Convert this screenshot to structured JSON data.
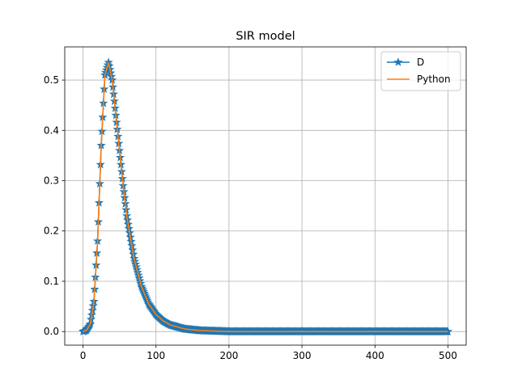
{
  "chart_data": {
    "type": "line",
    "title": "SIR model",
    "xlabel": "",
    "ylabel": "",
    "xlim": [
      -25,
      525
    ],
    "ylim": [
      -0.027,
      0.566
    ],
    "xticks": [
      0,
      100,
      200,
      300,
      400,
      500
    ],
    "yticks": [
      0.0,
      0.1,
      0.2,
      0.3,
      0.4,
      0.5
    ],
    "xtick_labels": [
      "0",
      "100",
      "200",
      "300",
      "400",
      "500"
    ],
    "ytick_labels": [
      "0.0",
      "0.1",
      "0.2",
      "0.3",
      "0.4",
      "0.5"
    ],
    "grid": true,
    "legend": "top-right",
    "x": [
      0,
      5,
      10,
      15,
      20,
      25,
      30,
      35,
      40,
      45,
      50,
      55,
      60,
      70,
      80,
      90,
      100,
      110,
      120,
      140,
      160,
      180,
      200,
      250,
      300,
      350,
      400,
      450,
      500
    ],
    "series": [
      {
        "name": "D",
        "color": "#1f77b4",
        "marker": "star",
        "values": [
          0.0,
          0.003,
          0.015,
          0.06,
          0.18,
          0.37,
          0.51,
          0.535,
          0.5,
          0.43,
          0.36,
          0.29,
          0.23,
          0.145,
          0.09,
          0.055,
          0.034,
          0.021,
          0.013,
          0.005,
          0.002,
          0.001,
          0.0,
          0.0,
          0.0,
          0.0,
          0.0,
          0.0,
          0.0
        ]
      },
      {
        "name": "Python",
        "color": "#ff7f0e",
        "marker": "none",
        "values": [
          0.0,
          0.003,
          0.015,
          0.06,
          0.18,
          0.37,
          0.51,
          0.535,
          0.5,
          0.43,
          0.36,
          0.29,
          0.23,
          0.145,
          0.09,
          0.055,
          0.034,
          0.021,
          0.013,
          0.005,
          0.002,
          0.001,
          0.0,
          0.0,
          0.0,
          0.0,
          0.0,
          0.0,
          0.0
        ]
      }
    ]
  }
}
